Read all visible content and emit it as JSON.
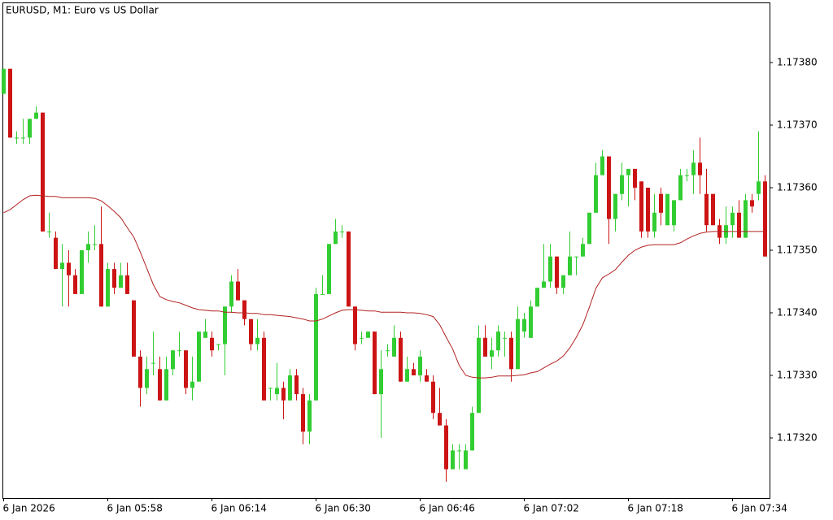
{
  "chart_data": {
    "type": "candlestick",
    "title": "EURUSD, M1:  Euro vs US Dollar",
    "categories": [
      "6 Jan 2026",
      null,
      null,
      null,
      null,
      null,
      null,
      null,
      null,
      null,
      null,
      null,
      null,
      null,
      null,
      null,
      "6 Jan 05:58",
      null,
      null,
      null,
      null,
      null,
      null,
      null,
      null,
      null,
      null,
      null,
      null,
      null,
      null,
      null,
      "6 Jan 06:14",
      null,
      null,
      null,
      null,
      null,
      null,
      null,
      null,
      null,
      null,
      null,
      null,
      null,
      null,
      null,
      "6 Jan 06:30",
      null,
      null,
      null,
      null,
      null,
      null,
      null,
      null,
      null,
      null,
      null,
      null,
      null,
      null,
      null,
      "6 Jan 06:46",
      null,
      null,
      null,
      null,
      null,
      null,
      null,
      null,
      null,
      null,
      null,
      null,
      null,
      null,
      null,
      "6 Jan 07:02",
      null,
      null,
      null,
      null,
      null,
      null,
      null,
      null,
      null,
      null,
      null,
      null,
      null,
      null,
      null,
      "6 Jan 07:18",
      null,
      null,
      null,
      null,
      null,
      null,
      null,
      null,
      null,
      null,
      null,
      null,
      null,
      null,
      null,
      "6 Jan 07:34",
      null,
      null,
      null,
      null,
      null
    ],
    "candles": {
      "up_color": "#32cd32",
      "down_color": "#cc1414",
      "open": [
        1.17375,
        1.17379,
        1.17368,
        1.17368,
        1.17368,
        1.17371,
        1.17372,
        1.17353,
        1.17352,
        1.17347,
        1.17348,
        1.17346,
        1.17343,
        1.1735,
        1.17351,
        1.17351,
        1.17341,
        1.17347,
        1.17344,
        1.17346,
        1.17342,
        1.17333,
        1.17328,
        1.17332,
        1.17331,
        1.17326,
        1.17331,
        1.17334,
        1.17334,
        1.17328,
        1.17329,
        1.17336,
        1.17336,
        1.17335,
        1.17335,
        1.17341,
        1.17345,
        1.17342,
        1.17339,
        1.17335,
        1.17336,
        1.17328,
        1.17327,
        1.17328,
        1.17326,
        1.1733,
        1.17327,
        1.17321,
        1.17326,
        1.17343,
        1.17343,
        1.17351,
        1.17353,
        1.17353,
        1.17341,
        1.17336,
        1.17336,
        1.17337,
        1.17327,
        1.17334,
        1.17333,
        1.17336,
        1.17329,
        1.17331,
        1.1733,
        1.1733,
        1.17329,
        1.17324,
        1.17322,
        1.17315,
        1.17318,
        1.17315,
        1.17318,
        1.17324,
        1.17336,
        1.17333,
        1.17334,
        1.17336,
        1.17336,
        1.17331,
        1.17337,
        1.17336,
        1.17341,
        1.17344,
        1.17345,
        1.17349,
        1.17344,
        1.17346,
        1.17349,
        1.17349,
        1.17351,
        1.17356,
        1.17362,
        1.17365,
        1.17355,
        1.17359,
        1.17362,
        1.17363,
        1.17361,
        1.1736,
        1.17353,
        1.17359,
        1.17354,
        1.17354,
        1.17358,
        1.17362,
        1.17362,
        1.17364,
        1.17359,
        1.17359,
        1.17354,
        1.17352,
        1.17354,
        1.17356,
        1.17352,
        1.17358,
        1.17359,
        1.17361
      ],
      "high": [
        1.17379,
        1.17379,
        1.17369,
        1.17371,
        1.17371,
        1.17373,
        1.17372,
        1.17356,
        1.17353,
        1.17351,
        1.1735,
        1.17347,
        1.1735,
        1.17353,
        1.17354,
        1.17357,
        1.17348,
        1.17348,
        1.17348,
        1.17348,
        1.17342,
        1.17334,
        1.17333,
        1.17337,
        1.17333,
        1.17333,
        1.17334,
        1.17337,
        1.17334,
        1.17333,
        1.17337,
        1.17339,
        1.17337,
        1.17335,
        1.17341,
        1.17346,
        1.17347,
        1.17342,
        1.17339,
        1.17339,
        1.17337,
        1.17328,
        1.17332,
        1.17329,
        1.17331,
        1.17331,
        1.17328,
        1.17327,
        1.17344,
        1.17346,
        1.17351,
        1.17355,
        1.17354,
        1.17353,
        1.17341,
        1.17337,
        1.17337,
        1.17337,
        1.17334,
        1.17335,
        1.17338,
        1.17337,
        1.17333,
        1.17332,
        1.17334,
        1.17331,
        1.1733,
        1.17328,
        1.17323,
        1.17319,
        1.17319,
        1.17319,
        1.17325,
        1.17338,
        1.17338,
        1.17336,
        1.17338,
        1.17337,
        1.17337,
        1.17341,
        1.1734,
        1.17342,
        1.17344,
        1.17351,
        1.17351,
        1.17349,
        1.17346,
        1.17353,
        1.17349,
        1.17352,
        1.17356,
        1.17364,
        1.17366,
        1.17365,
        1.17359,
        1.17364,
        1.17363,
        1.17363,
        1.17361,
        1.1736,
        1.17359,
        1.1736,
        1.17359,
        1.17358,
        1.17363,
        1.17363,
        1.17366,
        1.17368,
        1.17363,
        1.17359,
        1.17355,
        1.17357,
        1.17357,
        1.17358,
        1.17359,
        1.17359,
        1.17369,
        1.17362
      ],
      "low": [
        1.17375,
        1.17368,
        1.17367,
        1.17367,
        1.17367,
        1.17371,
        1.17353,
        1.17352,
        1.17347,
        1.17341,
        1.17341,
        1.17343,
        1.17343,
        1.17348,
        1.1735,
        1.17341,
        1.17341,
        1.17343,
        1.17344,
        1.17343,
        1.17333,
        1.17325,
        1.17327,
        1.1733,
        1.17326,
        1.17326,
        1.1733,
        1.17333,
        1.17327,
        1.17326,
        1.17329,
        1.17336,
        1.17333,
        1.17334,
        1.1733,
        1.1734,
        1.17342,
        1.17338,
        1.17334,
        1.17334,
        1.17326,
        1.17326,
        1.17326,
        1.17323,
        1.17326,
        1.17326,
        1.17319,
        1.17319,
        1.17326,
        1.17343,
        1.17343,
        1.17351,
        1.17352,
        1.17341,
        1.17334,
        1.17335,
        1.17336,
        1.17327,
        1.1732,
        1.17333,
        1.17333,
        1.17329,
        1.17329,
        1.1733,
        1.17329,
        1.17329,
        1.17323,
        1.17322,
        1.17313,
        1.17315,
        1.17315,
        1.17315,
        1.17318,
        1.17324,
        1.17333,
        1.17331,
        1.17333,
        1.17333,
        1.17329,
        1.17331,
        1.17336,
        1.17336,
        1.17341,
        1.17344,
        1.17344,
        1.17343,
        1.17343,
        1.17346,
        1.17346,
        1.17349,
        1.17351,
        1.17356,
        1.17362,
        1.17351,
        1.17353,
        1.17358,
        1.17357,
        1.17358,
        1.17352,
        1.17352,
        1.17352,
        1.17354,
        1.17354,
        1.17353,
        1.17358,
        1.17361,
        1.17359,
        1.17359,
        1.17353,
        1.17354,
        1.17351,
        1.17351,
        1.17352,
        1.17352,
        1.17352,
        1.17356,
        1.17358,
        1.17349
      ],
      "close": [
        1.17379,
        1.17368,
        1.17368,
        1.17368,
        1.17371,
        1.17372,
        1.17353,
        1.17353,
        1.17347,
        1.17348,
        1.17346,
        1.17343,
        1.1735,
        1.17351,
        1.17351,
        1.17341,
        1.17347,
        1.17344,
        1.17346,
        1.17343,
        1.17333,
        1.17328,
        1.17331,
        1.17332,
        1.17326,
        1.17331,
        1.17334,
        1.17334,
        1.17328,
        1.17329,
        1.17337,
        1.17337,
        1.17334,
        1.17335,
        1.17341,
        1.17345,
        1.17342,
        1.17339,
        1.17335,
        1.17336,
        1.17326,
        1.17328,
        1.17328,
        1.17326,
        1.1733,
        1.17327,
        1.17321,
        1.17326,
        1.17343,
        1.17343,
        1.17351,
        1.17353,
        1.17353,
        1.17341,
        1.17335,
        1.17336,
        1.17337,
        1.17327,
        1.17331,
        1.17334,
        1.17336,
        1.17329,
        1.17331,
        1.1733,
        1.17333,
        1.17329,
        1.17324,
        1.17322,
        1.17315,
        1.17318,
        1.17318,
        1.17318,
        1.17324,
        1.17336,
        1.17333,
        1.17334,
        1.17337,
        1.17336,
        1.17331,
        1.17339,
        1.17339,
        1.17341,
        1.17344,
        1.17345,
        1.17349,
        1.17344,
        1.17346,
        1.17349,
        1.17349,
        1.17351,
        1.17356,
        1.17362,
        1.17365,
        1.17355,
        1.17359,
        1.17362,
        1.17363,
        1.1736,
        1.17353,
        1.17353,
        1.17356,
        1.17356,
        1.17359,
        1.17358,
        1.17362,
        1.17362,
        1.17364,
        1.17362,
        1.17354,
        1.17354,
        1.17352,
        1.17354,
        1.17356,
        1.17352,
        1.17358,
        1.17357,
        1.17361,
        1.17349
      ]
    },
    "ma": {
      "color": "#b22222",
      "values": [
        1.17356,
        1.173565,
        1.173573,
        1.173581,
        1.173587,
        1.173588,
        1.173587,
        1.173586,
        1.173586,
        1.173584,
        1.173584,
        1.173584,
        1.173584,
        1.173584,
        1.173583,
        1.173579,
        1.173571,
        1.173562,
        1.173552,
        1.173536,
        1.173521,
        1.173497,
        1.173471,
        1.173445,
        1.173426,
        1.173421,
        1.173418,
        1.173416,
        1.173412,
        1.173408,
        1.173405,
        1.173404,
        1.173403,
        1.173403,
        1.173401,
        1.173401,
        1.1734,
        1.1734,
        1.173399,
        1.173399,
        1.173397,
        1.173397,
        1.173396,
        1.173395,
        1.173394,
        1.173392,
        1.17339,
        1.173387,
        1.173387,
        1.17339,
        1.173395,
        1.1734,
        1.173404,
        1.173405,
        1.173405,
        1.173404,
        1.173403,
        1.173403,
        1.173401,
        1.173401,
        1.173401,
        1.173401,
        1.1734,
        1.1734,
        1.173399,
        1.173397,
        1.173394,
        1.173381,
        1.173361,
        1.173342,
        1.173316,
        1.1733,
        1.173297,
        1.173296,
        1.173296,
        1.173297,
        1.173299,
        1.173299,
        1.173299,
        1.1733,
        1.173301,
        1.173304,
        1.173306,
        1.173312,
        1.173318,
        1.173323,
        1.173331,
        1.173344,
        1.173361,
        1.173381,
        1.173409,
        1.173439,
        1.173456,
        1.173462,
        1.173469,
        1.173481,
        1.173492,
        1.1735,
        1.173505,
        1.173508,
        1.173509,
        1.173509,
        1.173509,
        1.173509,
        1.173512,
        1.173518,
        1.173523,
        1.173527,
        1.173529,
        1.17353,
        1.17353,
        1.17353,
        1.17353,
        1.17353,
        1.17353,
        1.17353,
        1.17353,
        1.17353
      ]
    },
    "ylim": [
      1.1731,
      1.1739
    ],
    "yticks": [
      {
        "value": 1.1732,
        "label": "1.17320"
      },
      {
        "value": 1.1733,
        "label": "1.17330"
      },
      {
        "value": 1.1734,
        "label": "1.17340"
      },
      {
        "value": 1.1735,
        "label": "1.17350"
      },
      {
        "value": 1.1736,
        "label": "1.17360"
      },
      {
        "value": 1.1737,
        "label": "1.17370"
      },
      {
        "value": 1.1738,
        "label": "1.17380"
      }
    ],
    "grid": false
  }
}
